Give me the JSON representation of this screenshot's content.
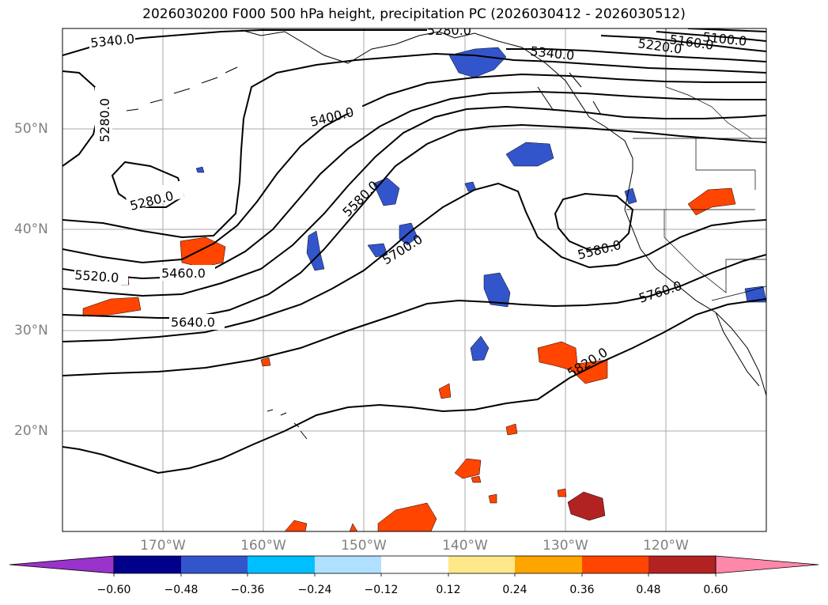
{
  "title": "2026030200 F000 500 hPa height, precipitation PC (2026030412 - 2026030512)",
  "lat_labels": [
    "50°N",
    "40°N",
    "30°N",
    "20°N"
  ],
  "lon_labels": [
    "170°W",
    "160°W",
    "150°W",
    "140°W",
    "130°W",
    "120°W"
  ],
  "contour_labels": [
    "5340.0",
    "5280.0",
    "5340.0",
    "5220.0",
    "5160.0",
    "5100.0",
    "5280.0",
    "5400.0",
    "5280.0",
    "5580.0",
    "5700.0",
    "5580.0",
    "5460.0",
    "5520.0",
    "5640.0",
    "5760.0",
    "5820.0"
  ],
  "colorbar": {
    "tick_labels": [
      "−0.60",
      "−0.48",
      "−0.36",
      "−0.24",
      "−0.12",
      "0.12",
      "0.24",
      "0.36",
      "0.48",
      "0.60"
    ],
    "colors": [
      "#9933cc",
      "#00008b",
      "#3355cc",
      "#00bfff",
      "#b0e0ff",
      "#ffffff",
      "#ffe88a",
      "#ffa500",
      "#ff4500",
      "#b22222",
      "#ff88aa"
    ]
  }
}
